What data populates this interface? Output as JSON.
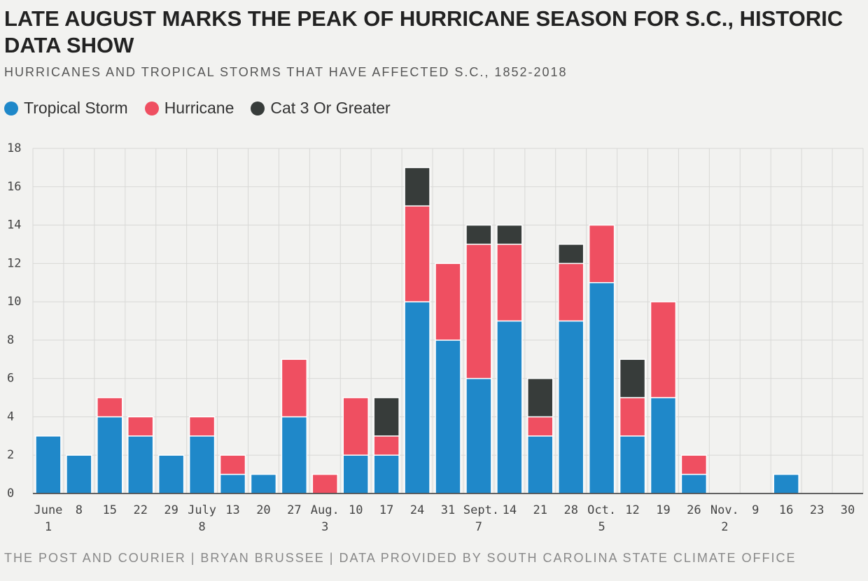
{
  "chart_data": {
    "type": "stacked-bar",
    "title": "LATE AUGUST MARKS THE PEAK OF HURRICANE SEASON FOR S.C., HISTORIC DATA SHOW",
    "subtitle": "HURRICANES AND TROPICAL STORMS THAT HAVE AFFECTED S.C., 1852-2018",
    "source": "THE POST AND COURIER | BRYAN BRUSSEE | DATA PROVIDED BY SOUTH CAROLINA STATE CLIMATE OFFICE",
    "categories": [
      "June 1",
      "8",
      "15",
      "22",
      "29",
      "July 8",
      "13",
      "20",
      "27",
      "Aug. 3",
      "10",
      "17",
      "24",
      "31",
      "Sept. 7",
      "14",
      "21",
      "28",
      "Oct. 5",
      "12",
      "19",
      "26",
      "Nov. 2",
      "9",
      "16",
      "23",
      "30"
    ],
    "series": [
      {
        "name": "Tropical Storm",
        "color": "#1f88c9",
        "values": [
          3,
          2,
          4,
          3,
          2,
          3,
          1,
          1,
          4,
          0,
          2,
          2,
          10,
          8,
          6,
          9,
          3,
          9,
          11,
          3,
          5,
          1,
          0,
          0,
          1,
          0,
          0
        ]
      },
      {
        "name": "Hurricane",
        "color": "#ef4f61",
        "values": [
          0,
          0,
          1,
          1,
          0,
          1,
          1,
          0,
          3,
          1,
          3,
          1,
          5,
          4,
          7,
          4,
          1,
          3,
          3,
          2,
          5,
          1,
          0,
          0,
          0,
          0,
          0
        ]
      },
      {
        "name": "Cat 3 Or Greater",
        "color": "#373c3a",
        "values": [
          0,
          0,
          0,
          0,
          0,
          0,
          0,
          0,
          0,
          0,
          0,
          2,
          2,
          0,
          1,
          1,
          2,
          1,
          0,
          2,
          0,
          0,
          0,
          0,
          0,
          0,
          0
        ]
      }
    ],
    "ylim": [
      0,
      18
    ],
    "yticks": [
      0,
      2,
      4,
      6,
      8,
      10,
      12,
      14,
      16,
      18
    ],
    "grid": true
  }
}
